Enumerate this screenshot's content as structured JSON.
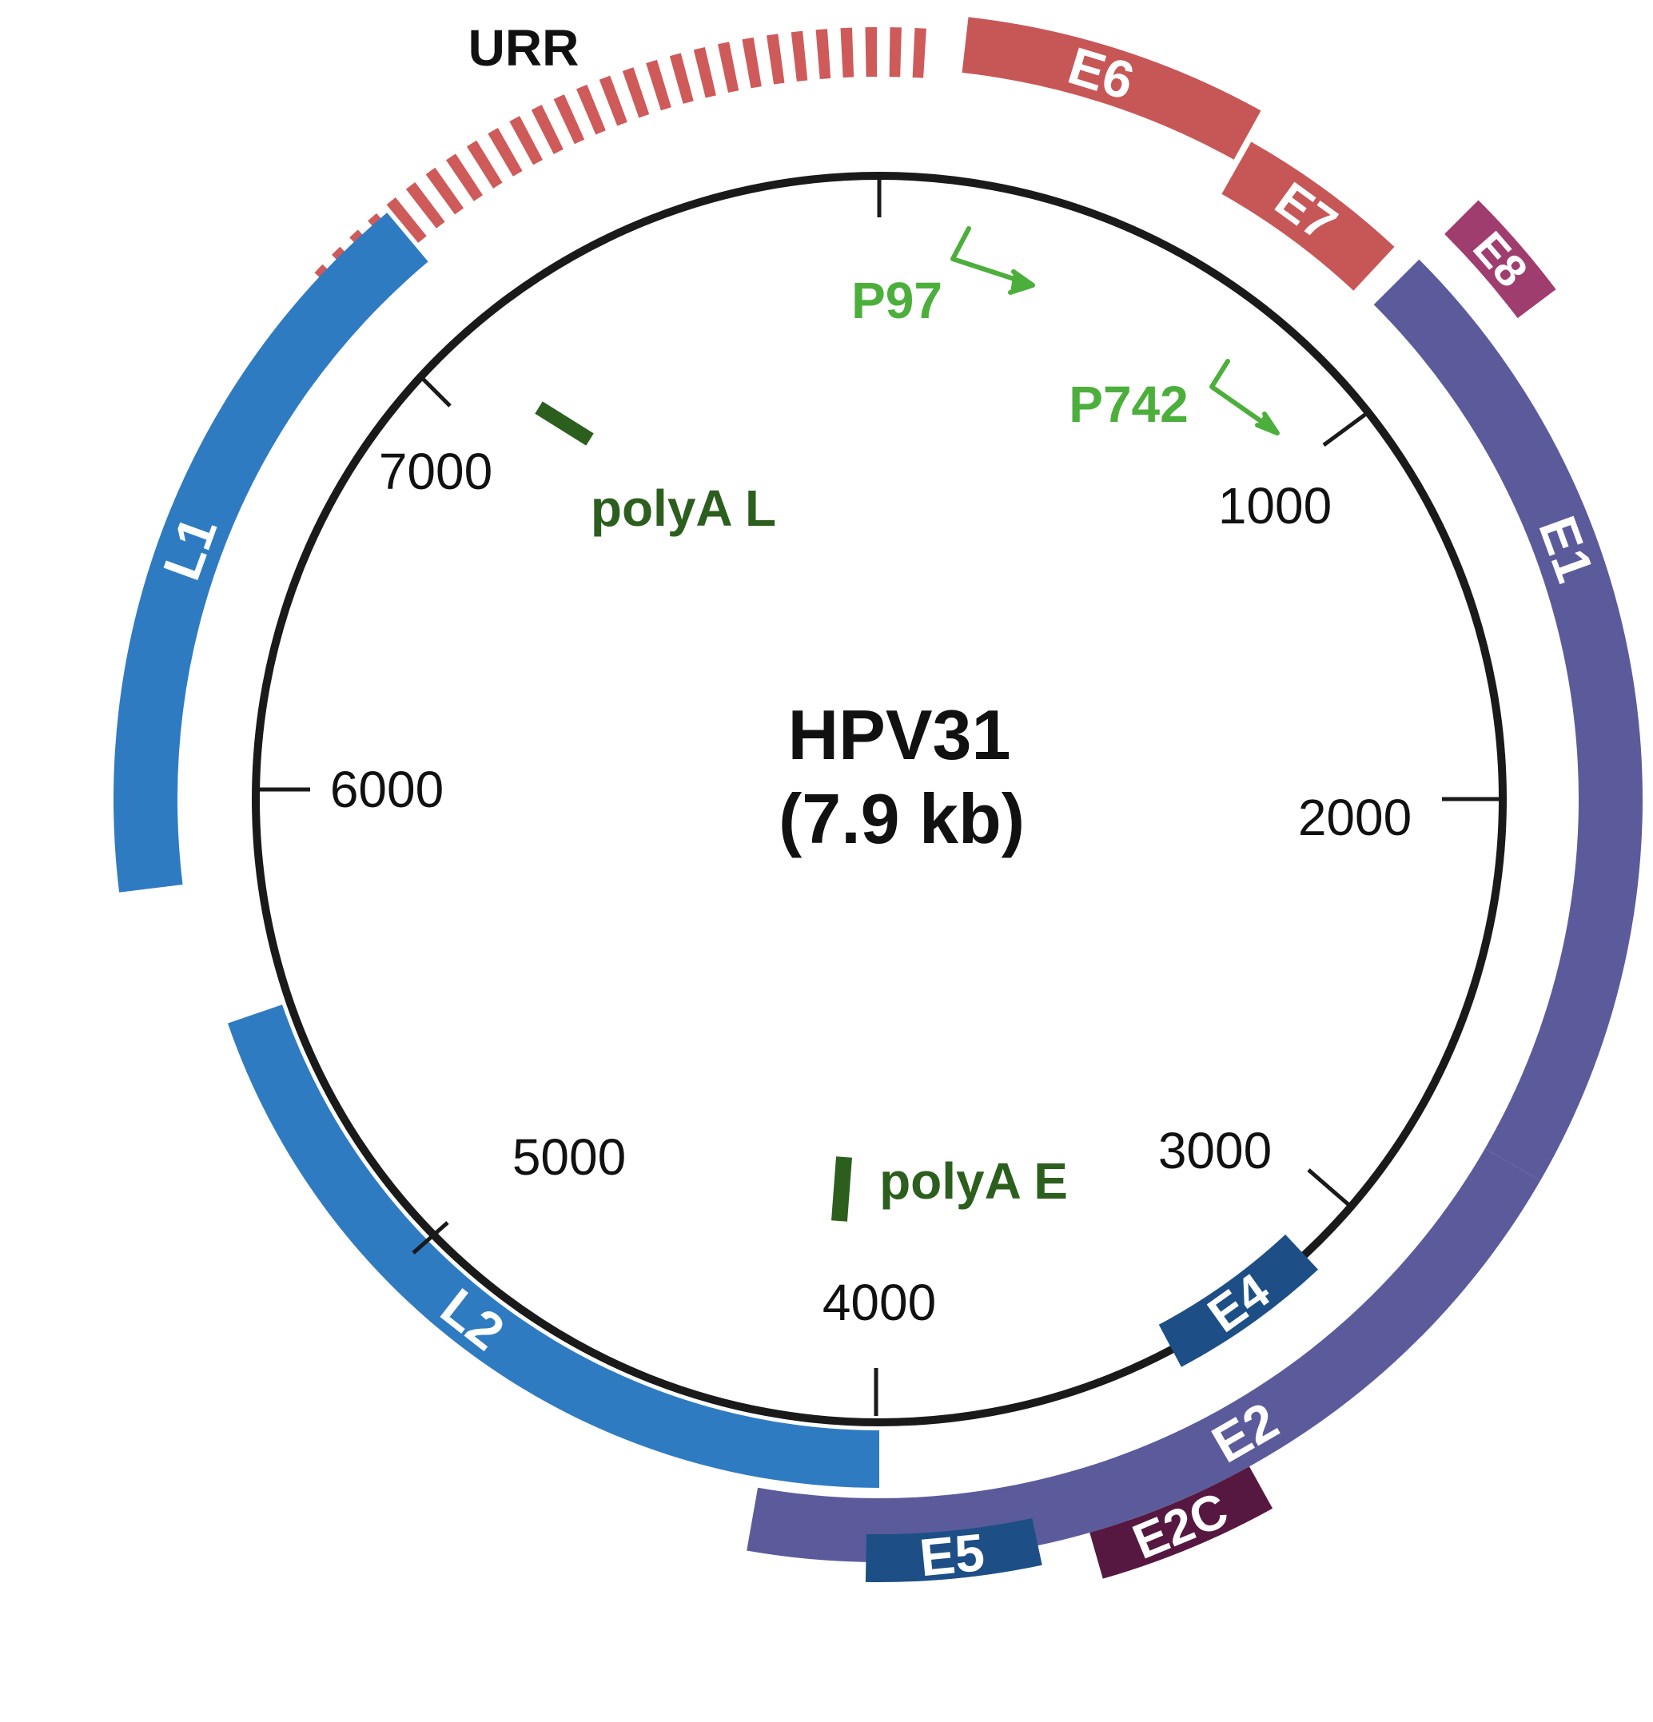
{
  "genome": {
    "name": "HPV31",
    "size_label": "(7.9 kb)",
    "length_bp": 7900
  },
  "colors": {
    "circle": "#1a1a1a",
    "urr": "#cf5a5a",
    "e6_e7": "#c75757",
    "e1_e2": "#5b5b9c",
    "e8": "#a03d6f",
    "e4_e5": "#1d4f86",
    "e2c": "#561840",
    "late": "#2f7bc2",
    "promoter": "#4caf3c",
    "polya": "#2c5f1e",
    "label_on_block": "#ffffff"
  },
  "urr_label": "URR",
  "ticks": [
    {
      "label": "1000"
    },
    {
      "label": "2000"
    },
    {
      "label": "3000"
    },
    {
      "label": "4000"
    },
    {
      "label": "5000"
    },
    {
      "label": "6000"
    },
    {
      "label": "7000"
    }
  ],
  "genes": [
    {
      "name": "E6",
      "group": "early"
    },
    {
      "name": "E7",
      "group": "early"
    },
    {
      "name": "E1",
      "group": "early"
    },
    {
      "name": "E8",
      "group": "early"
    },
    {
      "name": "E2",
      "group": "early"
    },
    {
      "name": "E4",
      "group": "early"
    },
    {
      "name": "E2C",
      "group": "early"
    },
    {
      "name": "E5",
      "group": "early"
    },
    {
      "name": "L2",
      "group": "late"
    },
    {
      "name": "L1",
      "group": "late"
    }
  ],
  "promoters": [
    {
      "name": "P97"
    },
    {
      "name": "P742"
    }
  ],
  "polya_sites": [
    {
      "name": "polyA L"
    },
    {
      "name": "polyA E"
    }
  ]
}
